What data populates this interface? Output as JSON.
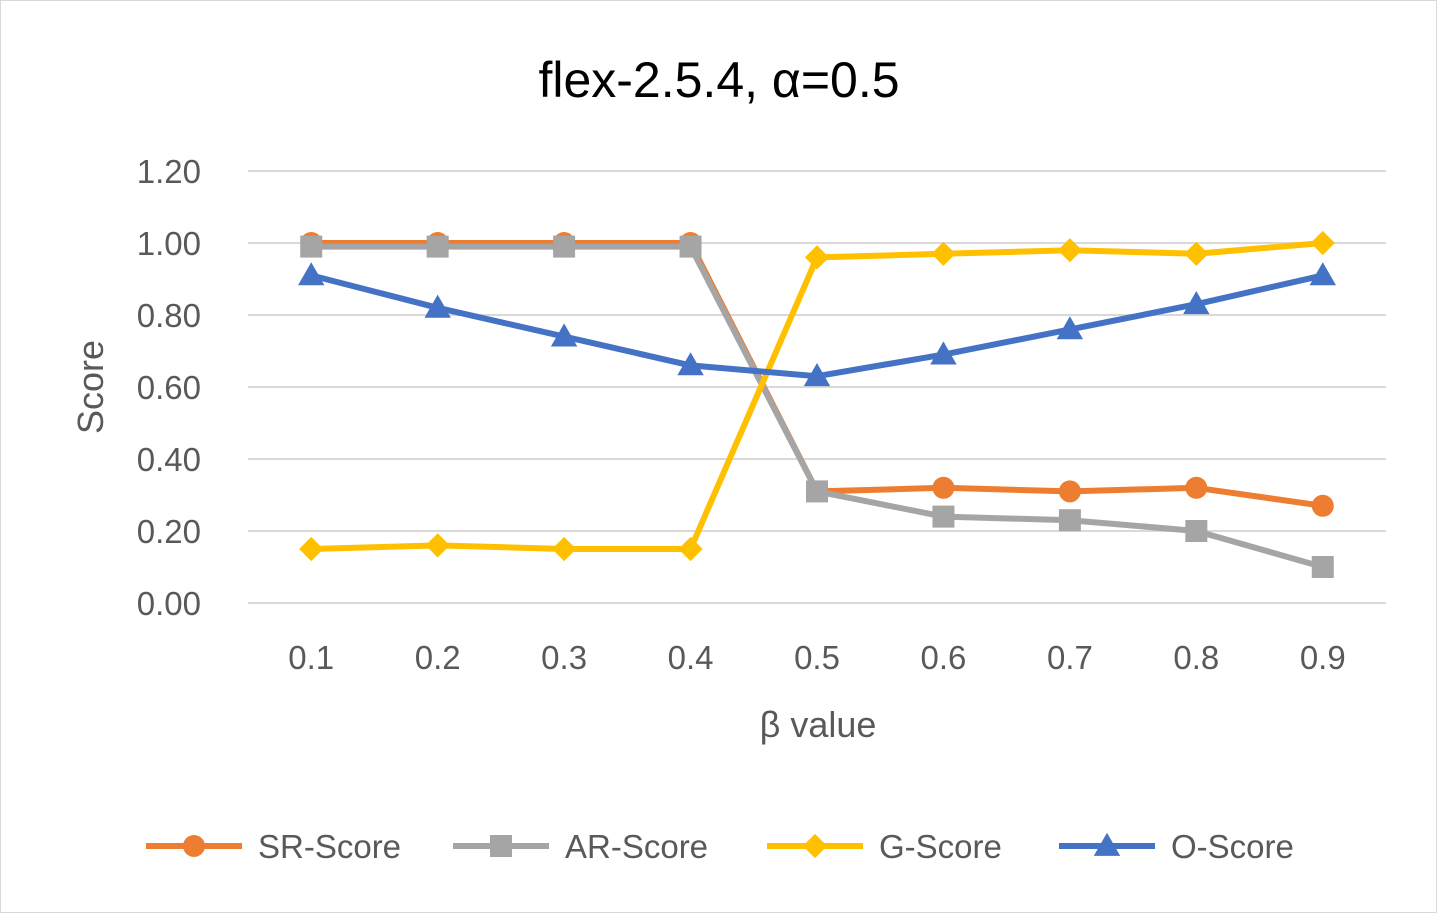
{
  "chart_data": {
    "type": "line",
    "title": "flex-2.5.4, α=0.5",
    "xlabel": "β value",
    "ylabel": "Score",
    "categories": [
      "0.1",
      "0.2",
      "0.3",
      "0.4",
      "0.5",
      "0.6",
      "0.7",
      "0.8",
      "0.9"
    ],
    "y_ticks": [
      "0.00",
      "0.20",
      "0.40",
      "0.60",
      "0.80",
      "1.00",
      "1.20"
    ],
    "ylim": [
      0,
      1.2
    ],
    "grid": true,
    "legend_position": "bottom",
    "series": [
      {
        "name": "SR-Score",
        "color": "#ED7D31",
        "marker": "circle",
        "values": [
          1.0,
          1.0,
          1.0,
          1.0,
          0.31,
          0.32,
          0.31,
          0.32,
          0.27
        ]
      },
      {
        "name": "AR-Score",
        "color": "#A5A5A5",
        "marker": "square",
        "values": [
          0.99,
          0.99,
          0.99,
          0.99,
          0.31,
          0.24,
          0.23,
          0.2,
          0.1
        ]
      },
      {
        "name": "G-Score",
        "color": "#FFC000",
        "marker": "diamond",
        "values": [
          0.15,
          0.16,
          0.15,
          0.15,
          0.96,
          0.97,
          0.98,
          0.97,
          1.0
        ]
      },
      {
        "name": "O-Score",
        "color": "#4472C4",
        "marker": "triangle",
        "values": [
          0.91,
          0.82,
          0.74,
          0.66,
          0.63,
          0.69,
          0.76,
          0.83,
          0.91
        ]
      }
    ]
  }
}
